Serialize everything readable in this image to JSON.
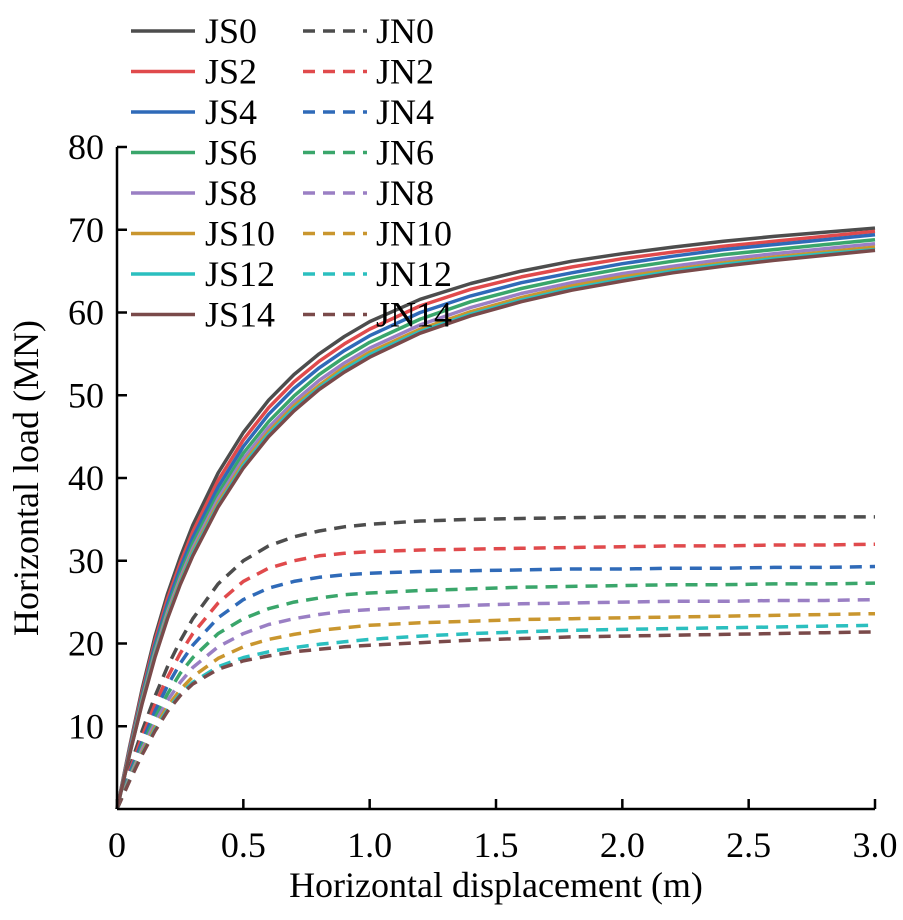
{
  "chart_data": {
    "type": "line",
    "title": "",
    "xlabel": "Horizontal displacement (m)",
    "ylabel": "Horizontal load (MN)",
    "xlim": [
      0,
      3.0
    ],
    "ylim": [
      0,
      80
    ],
    "xticks": [
      {
        "value": 0,
        "label": "0"
      },
      {
        "value": 0.5,
        "label": "0.5"
      },
      {
        "value": 1.0,
        "label": "1.0"
      },
      {
        "value": 1.5,
        "label": "1.5"
      },
      {
        "value": 2.0,
        "label": "2.0"
      },
      {
        "value": 2.5,
        "label": "2.5"
      },
      {
        "value": 3.0,
        "label": "3.0"
      }
    ],
    "yticks": [
      {
        "value": 10,
        "label": "10"
      },
      {
        "value": 20,
        "label": "20"
      },
      {
        "value": 30,
        "label": "30"
      },
      {
        "value": 40,
        "label": "40"
      },
      {
        "value": 50,
        "label": "50"
      },
      {
        "value": 60,
        "label": "60"
      },
      {
        "value": 70,
        "label": "70"
      },
      {
        "value": 80,
        "label": "80"
      }
    ],
    "grid": false,
    "legend_position": "top-left",
    "x": [
      0,
      0.05,
      0.1,
      0.15,
      0.2,
      0.25,
      0.3,
      0.4,
      0.5,
      0.6,
      0.7,
      0.8,
      0.9,
      1.0,
      1.2,
      1.4,
      1.6,
      1.8,
      2.0,
      2.2,
      2.4,
      2.6,
      2.8,
      3.0
    ],
    "series": [
      {
        "name": "JS0",
        "color": "#4d4d4d",
        "dash": false,
        "values": [
          0,
          7.5,
          14.6,
          20.8,
          26.0,
          30.4,
          34.3,
          40.6,
          45.5,
          49.4,
          52.5,
          55.0,
          57.1,
          58.9,
          61.6,
          63.5,
          65.0,
          66.2,
          67.1,
          67.9,
          68.6,
          69.2,
          69.7,
          70.2
        ]
      },
      {
        "name": "JS2",
        "color": "#e04a4c",
        "dash": false,
        "values": [
          0,
          7.3,
          14.2,
          20.3,
          25.4,
          29.7,
          33.5,
          39.7,
          44.6,
          48.5,
          51.6,
          54.1,
          56.2,
          58.0,
          60.8,
          62.8,
          64.3,
          65.5,
          66.5,
          67.3,
          68.0,
          68.6,
          69.2,
          69.8
        ]
      },
      {
        "name": "JS4",
        "color": "#2f6ab8",
        "dash": false,
        "values": [
          0,
          7.1,
          13.8,
          19.8,
          24.8,
          29.1,
          32.8,
          38.9,
          43.8,
          47.7,
          50.8,
          53.3,
          55.4,
          57.2,
          60.0,
          62.0,
          63.6,
          64.8,
          65.9,
          66.8,
          67.6,
          68.2,
          68.8,
          69.4
        ]
      },
      {
        "name": "JS6",
        "color": "#3aa66b",
        "dash": false,
        "values": [
          0,
          6.9,
          13.5,
          19.3,
          24.2,
          28.4,
          32.1,
          38.1,
          43.0,
          46.8,
          49.9,
          52.5,
          54.6,
          56.4,
          59.2,
          61.3,
          62.9,
          64.2,
          65.3,
          66.2,
          67.0,
          67.6,
          68.2,
          68.8
        ]
      },
      {
        "name": "JS8",
        "color": "#9a7fc4",
        "dash": false,
        "values": [
          0,
          6.8,
          13.2,
          18.9,
          23.8,
          27.9,
          31.5,
          37.5,
          42.3,
          46.1,
          49.2,
          51.8,
          53.9,
          55.7,
          58.5,
          60.6,
          62.3,
          63.6,
          64.7,
          65.6,
          66.4,
          67.1,
          67.7,
          68.3
        ]
      },
      {
        "name": "JS10",
        "color": "#c9962e",
        "dash": false,
        "values": [
          0,
          6.7,
          13.0,
          18.6,
          23.4,
          27.5,
          31.1,
          37.0,
          41.8,
          45.6,
          48.7,
          51.2,
          53.4,
          55.2,
          58.0,
          60.1,
          61.8,
          63.2,
          64.3,
          65.2,
          66.0,
          66.7,
          67.3,
          67.9
        ]
      },
      {
        "name": "JS12",
        "color": "#2bbfbf",
        "dash": false,
        "values": [
          0,
          6.6,
          12.9,
          18.5,
          23.2,
          27.3,
          30.9,
          36.7,
          41.5,
          45.3,
          48.4,
          50.9,
          53.1,
          54.9,
          57.7,
          59.8,
          61.5,
          62.9,
          64.0,
          65.0,
          65.8,
          66.5,
          67.1,
          67.6
        ]
      },
      {
        "name": "JS14",
        "color": "#7a4a4a",
        "dash": false,
        "values": [
          0,
          6.6,
          12.8,
          18.3,
          23.0,
          27.1,
          30.6,
          36.5,
          41.2,
          45.0,
          48.1,
          50.7,
          52.8,
          54.6,
          57.5,
          59.6,
          61.3,
          62.7,
          63.8,
          64.8,
          65.6,
          66.3,
          66.9,
          67.5
        ]
      },
      {
        "name": "JN0",
        "color": "#4d4d4d",
        "dash": true,
        "values": [
          0,
          5.0,
          9.5,
          13.6,
          17.2,
          20.3,
          23.0,
          27.2,
          30.0,
          31.8,
          32.9,
          33.6,
          34.1,
          34.4,
          34.8,
          35.0,
          35.1,
          35.2,
          35.3,
          35.3,
          35.3,
          35.3,
          35.3,
          35.3
        ]
      },
      {
        "name": "JN2",
        "color": "#e04a4c",
        "dash": true,
        "values": [
          0,
          4.6,
          8.8,
          12.6,
          15.9,
          18.8,
          21.2,
          24.9,
          27.5,
          29.1,
          30.0,
          30.6,
          30.9,
          31.1,
          31.3,
          31.4,
          31.5,
          31.6,
          31.7,
          31.8,
          31.8,
          31.9,
          31.9,
          32.0
        ]
      },
      {
        "name": "JN4",
        "color": "#2f6ab8",
        "dash": true,
        "values": [
          0,
          4.3,
          8.2,
          11.8,
          14.9,
          17.6,
          19.8,
          23.1,
          25.3,
          26.7,
          27.5,
          28.0,
          28.3,
          28.5,
          28.7,
          28.8,
          28.9,
          29.0,
          29.0,
          29.1,
          29.1,
          29.2,
          29.2,
          29.3
        ]
      },
      {
        "name": "JN6",
        "color": "#3aa66b",
        "dash": true,
        "values": [
          0,
          4.0,
          7.7,
          11.0,
          13.9,
          16.4,
          18.3,
          21.2,
          23.0,
          24.2,
          25.0,
          25.5,
          25.9,
          26.1,
          26.4,
          26.6,
          26.8,
          26.9,
          27.0,
          27.1,
          27.1,
          27.2,
          27.2,
          27.3
        ]
      },
      {
        "name": "JN8",
        "color": "#9a7fc4",
        "dash": true,
        "values": [
          0,
          3.8,
          7.3,
          10.4,
          13.1,
          15.3,
          17.1,
          19.6,
          21.2,
          22.3,
          23.0,
          23.5,
          23.9,
          24.1,
          24.4,
          24.6,
          24.8,
          24.9,
          25.0,
          25.1,
          25.1,
          25.2,
          25.2,
          25.3
        ]
      },
      {
        "name": "JN10",
        "color": "#c9962e",
        "dash": true,
        "values": [
          0,
          3.6,
          6.9,
          9.9,
          12.4,
          14.4,
          16.0,
          18.2,
          19.6,
          20.5,
          21.1,
          21.6,
          21.9,
          22.2,
          22.5,
          22.7,
          22.9,
          23.0,
          23.1,
          23.2,
          23.3,
          23.4,
          23.5,
          23.6
        ]
      },
      {
        "name": "JN12",
        "color": "#2bbfbf",
        "dash": true,
        "values": [
          0,
          3.5,
          6.7,
          9.6,
          12.0,
          13.9,
          15.3,
          17.2,
          18.3,
          19.0,
          19.5,
          19.9,
          20.2,
          20.5,
          20.9,
          21.2,
          21.4,
          21.6,
          21.7,
          21.8,
          21.9,
          22.0,
          22.1,
          22.2
        ]
      },
      {
        "name": "JN14",
        "color": "#7a4a4a",
        "dash": true,
        "values": [
          0,
          3.4,
          6.6,
          9.4,
          11.8,
          13.7,
          15.1,
          16.9,
          17.9,
          18.5,
          19.0,
          19.3,
          19.6,
          19.8,
          20.1,
          20.4,
          20.6,
          20.8,
          20.9,
          21.0,
          21.1,
          21.2,
          21.3,
          21.4
        ]
      }
    ]
  }
}
